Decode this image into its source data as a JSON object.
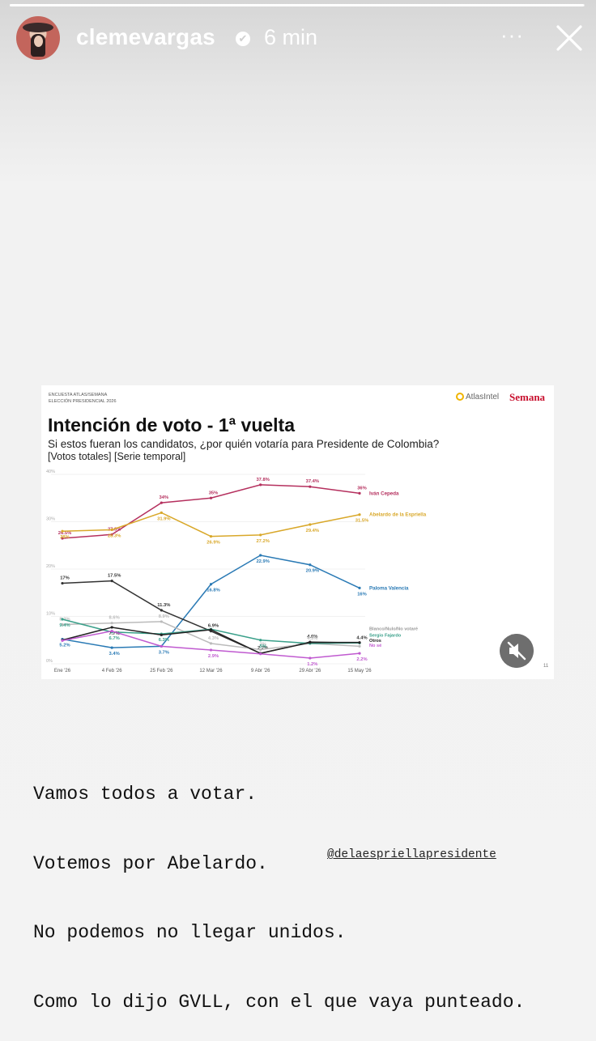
{
  "story": {
    "username": "clemevargas",
    "time_ago": "6 min",
    "more_label": "···",
    "progress": 0.999
  },
  "card": {
    "header_lines": [
      "ENCUESTA ATLAS/SEMANA",
      "ELECCIÓN PRESIDENCIAL 2026"
    ],
    "brand_atlas": "AtlasIntel",
    "brand_semana": "Semana",
    "title": "Intención de voto - 1ª vuelta",
    "subtitle": "Si estos fueran los candidatos, ¿por quién votaría para Presidente de Colombia?",
    "subtitle2": "[Votos totales] [Serie temporal]",
    "page_number": "11"
  },
  "chart_data": {
    "type": "line",
    "x": [
      "Ene '26",
      "4 Feb '26",
      "25 Feb '26",
      "12 Mar '26",
      "9 Abr '26",
      "29 Abr '26",
      "15 May '26"
    ],
    "ylim": [
      0,
      40
    ],
    "yticks": [
      "0%",
      "10%",
      "20%",
      "30%",
      "40%"
    ],
    "grid": true,
    "series": [
      {
        "name": "Iván Cepeda",
        "color": "#b5305e",
        "values": [
          26.5,
          27.3,
          34,
          35,
          37.8,
          37.4,
          36
        ],
        "labels": [
          "26.5%",
          "27.3%",
          "34%",
          "35%",
          "37.8%",
          "37.4%",
          "36%"
        ]
      },
      {
        "name": "Abelardo de la Espriella",
        "color": "#d9a82a",
        "values": [
          28,
          28.3,
          31.9,
          26.9,
          27.2,
          29.4,
          31.5
        ],
        "labels": [
          "28%",
          "28.3%",
          "31.9%",
          "26.9%",
          "27.2%",
          "29.4%",
          "31.5%"
        ]
      },
      {
        "name": "Paloma Valencia",
        "color": "#2a7ab5",
        "values": [
          5.2,
          3.4,
          3.7,
          16.8,
          22.9,
          20.9,
          16
        ],
        "labels": [
          "5.2%",
          "3.4%",
          "3.7%",
          "16.8%",
          "22.9%",
          "20.9%",
          "16%"
        ]
      },
      {
        "name": "",
        "color": "#333333",
        "values": [
          17,
          17.5,
          11.3,
          6.9,
          2.2,
          4.6,
          4.4
        ],
        "labels": [
          "17%",
          "17.5%",
          "11.3%",
          "6.9%",
          "2.2%",
          "4.6%",
          "4.4%"
        ]
      },
      {
        "name": "Blanco/Nulo/No votaré",
        "color": "#bbbbbb",
        "values": [
          8.3,
          8.6,
          8.9,
          4.3,
          3,
          4.3,
          3.7
        ],
        "labels": [
          "8.3%",
          "8.6%",
          "8.9%",
          "4.3%",
          "3%",
          "4.3%",
          ""
        ]
      },
      {
        "name": "Sergio Fajardo",
        "color": "#3aa08a",
        "values": [
          9.4,
          6.7,
          6.3,
          7.3,
          5,
          4.3,
          4.4
        ],
        "labels": [
          "9.4%",
          "6.7%",
          "6.3%",
          "",
          "5%",
          "",
          ""
        ]
      },
      {
        "name": "Otros",
        "color": "#222222",
        "values": [
          5,
          7.7,
          6.1,
          7.2,
          2.2,
          4.5,
          4.5
        ],
        "labels": [
          "",
          "7.7%",
          "",
          "",
          "",
          "",
          ""
        ]
      },
      {
        "name": "No sé",
        "color": "#c05ad0",
        "values": [
          4.9,
          6.9,
          3.7,
          2.9,
          2.1,
          1.2,
          2.2
        ],
        "labels": [
          "",
          "",
          "",
          "2.9%",
          "",
          "1.2%",
          "2.2%"
        ]
      }
    ],
    "legend_labels": [
      "Iván Cepeda",
      "Abelardo de la Espriella",
      "Paloma Valencia",
      "Blanco/Nulo/No votaré",
      "Sergio Fajardo",
      "Otros",
      "No sé"
    ]
  },
  "caption": {
    "lines": [
      "Vamos todos a votar.",
      "Votemos por Abelardo.",
      "No podemos no llegar unidos.",
      "Como lo dijo GVLL, con el que vaya punteado."
    ],
    "mention": "@delaespriellapresidente"
  }
}
